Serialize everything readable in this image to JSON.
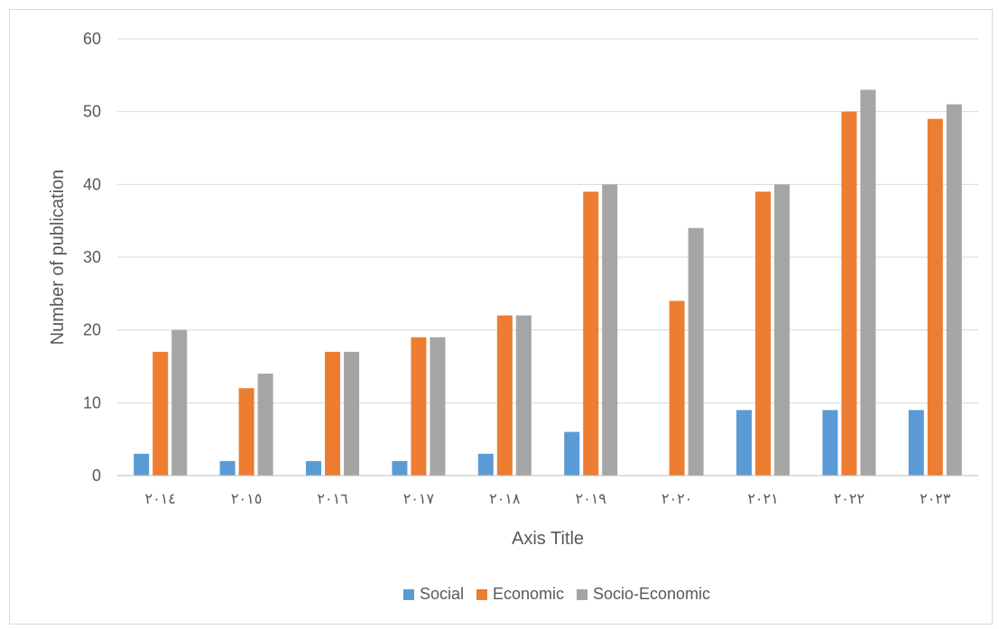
{
  "chart_data": {
    "type": "bar",
    "categories": [
      "٢٠١٤",
      "٢٠١٥",
      "٢٠١٦",
      "٢٠١٧",
      "٢٠١٨",
      "٢٠١٩",
      "٢٠٢٠",
      "٢٠٢١",
      "٢٠٢٢",
      "٢٠٢٣"
    ],
    "series": [
      {
        "name": "Social",
        "color": "#5b9bd5",
        "values": [
          3,
          2,
          2,
          2,
          3,
          6,
          0,
          9,
          9,
          9
        ]
      },
      {
        "name": "Economic",
        "color": "#ed7d31",
        "values": [
          17,
          12,
          17,
          19,
          22,
          39,
          24,
          39,
          50,
          49
        ]
      },
      {
        "name": "Socio-Economic",
        "color": "#a5a5a5",
        "values": [
          20,
          14,
          17,
          19,
          22,
          40,
          34,
          40,
          53,
          51
        ]
      }
    ],
    "xlabel": "Axis Title",
    "ylabel": "Number of publication",
    "ylim": [
      0,
      60
    ],
    "yticks": [
      "0",
      "10",
      "20",
      "30",
      "40",
      "50",
      "60"
    ],
    "grid": true,
    "legend_position": "bottom"
  }
}
